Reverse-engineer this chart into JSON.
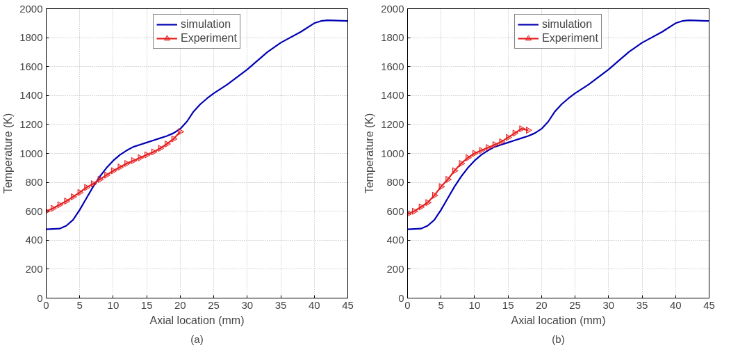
{
  "chart_data": [
    {
      "type": "line",
      "xlabel": "Axial location (mm)",
      "ylabel": "Temperature (K)",
      "annotations": [
        "(a)"
      ],
      "xlim": [
        0,
        45
      ],
      "ylim": [
        0,
        2000
      ],
      "xticks": [
        0,
        5,
        10,
        15,
        20,
        25,
        30,
        35,
        40,
        45
      ],
      "yticks": [
        0,
        200,
        400,
        600,
        800,
        1000,
        1200,
        1400,
        1600,
        1800,
        2000
      ],
      "grid": true,
      "legend": "top",
      "series": [
        {
          "name": "simulation",
          "color": "#0000b4",
          "marker": "none",
          "x": [
            0,
            2,
            3,
            4,
            5,
            6,
            7,
            8,
            9,
            10,
            11,
            12,
            13,
            14,
            15,
            16,
            17,
            18,
            19,
            20,
            21,
            22,
            23,
            24,
            25,
            27,
            30,
            33,
            35,
            38,
            40,
            41,
            42,
            45
          ],
          "values": [
            475,
            480,
            500,
            540,
            610,
            690,
            770,
            840,
            900,
            950,
            990,
            1020,
            1045,
            1060,
            1075,
            1090,
            1105,
            1120,
            1140,
            1170,
            1220,
            1290,
            1340,
            1380,
            1415,
            1475,
            1580,
            1700,
            1765,
            1840,
            1900,
            1915,
            1920,
            1915
          ]
        },
        {
          "name": "Experiment",
          "color": "#e61e1e",
          "marker": "triangle",
          "x": [
            0,
            1,
            2,
            3,
            4,
            5,
            6,
            7,
            8,
            9,
            10,
            11,
            12,
            13,
            14,
            15,
            16,
            17,
            18,
            19,
            20
          ],
          "values": [
            600,
            620,
            645,
            670,
            700,
            730,
            765,
            790,
            820,
            850,
            880,
            905,
            930,
            950,
            970,
            990,
            1010,
            1035,
            1065,
            1100,
            1150
          ]
        }
      ]
    },
    {
      "type": "line",
      "xlabel": "Axial location (mm)",
      "ylabel": "Temperature (K)",
      "annotations": [
        "(b)"
      ],
      "xlim": [
        0,
        45
      ],
      "ylim": [
        0,
        2000
      ],
      "xticks": [
        0,
        5,
        10,
        15,
        20,
        25,
        30,
        35,
        40,
        45
      ],
      "yticks": [
        0,
        200,
        400,
        600,
        800,
        1000,
        1200,
        1400,
        1600,
        1800,
        2000
      ],
      "grid": true,
      "legend": "top",
      "series": [
        {
          "name": "simulation",
          "color": "#0000b4",
          "marker": "none",
          "x": [
            0,
            2,
            3,
            4,
            5,
            6,
            7,
            8,
            9,
            10,
            11,
            12,
            13,
            14,
            15,
            16,
            17,
            18,
            19,
            20,
            21,
            22,
            23,
            24,
            25,
            27,
            30,
            33,
            35,
            38,
            40,
            41,
            42,
            45
          ],
          "values": [
            475,
            480,
            500,
            540,
            610,
            690,
            770,
            840,
            900,
            950,
            990,
            1020,
            1045,
            1060,
            1075,
            1090,
            1105,
            1120,
            1140,
            1170,
            1220,
            1290,
            1340,
            1380,
            1415,
            1475,
            1580,
            1700,
            1765,
            1840,
            1900,
            1915,
            1920,
            1915
          ]
        },
        {
          "name": "Experiment",
          "color": "#e61e1e",
          "marker": "triangle",
          "x": [
            0,
            1,
            2,
            3,
            4,
            5,
            6,
            7,
            8,
            9,
            10,
            11,
            12,
            13,
            14,
            15,
            16,
            17,
            18
          ],
          "values": [
            580,
            600,
            630,
            660,
            710,
            770,
            820,
            880,
            930,
            970,
            1000,
            1020,
            1040,
            1060,
            1080,
            1110,
            1140,
            1170,
            1160
          ]
        }
      ]
    }
  ]
}
